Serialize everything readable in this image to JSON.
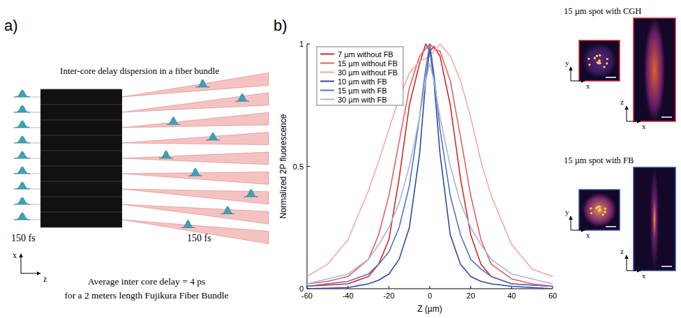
{
  "panels": {
    "a": "a)",
    "b": "b)"
  },
  "panel_a": {
    "title": "Inter-core delay dispersion in a fiber bundle",
    "input_label": "150 fs",
    "output_label": "150 fs",
    "axis_x": "x",
    "axis_z": "z",
    "caption": [
      "Average inter core delay = 4 ps",
      "for a 2 meters length Fujikura Fiber Bundle"
    ]
  },
  "chart_data": {
    "type": "line",
    "x_label": "Z (µm)",
    "y_label": "Normalized 2P fluorescence",
    "xlim": [
      -60,
      60
    ],
    "xticks": [
      -60,
      -40,
      -20,
      0,
      20,
      40,
      60
    ],
    "ylim": [
      0,
      1
    ],
    "yticks": [
      0,
      0.5,
      1
    ],
    "legend": "upper left",
    "x": [
      -60,
      -50,
      -40,
      -30,
      -25,
      -20,
      -15,
      -10,
      -5,
      -2,
      0,
      2,
      5,
      10,
      15,
      20,
      25,
      30,
      40,
      50,
      60
    ],
    "series": [
      {
        "name": "7 µm without FB",
        "color": "#d7262b",
        "values": [
          0.01,
          0.015,
          0.02,
          0.05,
          0.1,
          0.2,
          0.45,
          0.75,
          0.92,
          1.0,
          0.97,
          0.99,
          0.95,
          0.75,
          0.45,
          0.22,
          0.1,
          0.05,
          0.02,
          0.015,
          0.01
        ]
      },
      {
        "name": "15 µm without FB",
        "color": "#e9605c",
        "values": [
          0.02,
          0.03,
          0.05,
          0.12,
          0.22,
          0.38,
          0.6,
          0.82,
          0.95,
          0.98,
          1.0,
          0.98,
          0.97,
          0.85,
          0.62,
          0.38,
          0.2,
          0.1,
          0.04,
          0.02,
          0.01
        ]
      },
      {
        "name": "30 µm without FB",
        "color": "#f2a9a2",
        "values": [
          0.05,
          0.1,
          0.2,
          0.4,
          0.52,
          0.65,
          0.78,
          0.88,
          0.93,
          0.94,
          0.95,
          0.97,
          1.0,
          0.95,
          0.85,
          0.7,
          0.52,
          0.38,
          0.18,
          0.08,
          0.05
        ]
      },
      {
        "name": "10 µm with FB",
        "color": "#2c4aa0",
        "values": [
          0.0,
          0.002,
          0.005,
          0.02,
          0.035,
          0.06,
          0.12,
          0.25,
          0.55,
          0.85,
          0.98,
          0.85,
          0.55,
          0.22,
          0.1,
          0.05,
          0.03,
          0.02,
          0.01,
          0.005,
          0.0
        ]
      },
      {
        "name": "15 µm with FB",
        "color": "#5873c0",
        "values": [
          0.01,
          0.02,
          0.03,
          0.06,
          0.1,
          0.15,
          0.25,
          0.42,
          0.7,
          0.9,
          1.0,
          0.88,
          0.65,
          0.38,
          0.22,
          0.12,
          0.08,
          0.05,
          0.02,
          0.015,
          0.01
        ]
      },
      {
        "name": "30 µm with FB",
        "color": "#a9b5de",
        "values": [
          0.02,
          0.04,
          0.06,
          0.12,
          0.18,
          0.25,
          0.35,
          0.5,
          0.7,
          0.85,
          0.92,
          0.85,
          0.7,
          0.5,
          0.35,
          0.25,
          0.18,
          0.12,
          0.06,
          0.04,
          0.02
        ]
      }
    ]
  },
  "insets": [
    {
      "title": "15 µm spot with CGH",
      "xy_axes": [
        "y",
        "x"
      ],
      "xz_axes": [
        "z",
        "x"
      ]
    },
    {
      "title": "15 µm spot with FB",
      "xy_axes": [
        "y",
        "x"
      ],
      "xz_axes": [
        "z",
        "x"
      ]
    }
  ]
}
